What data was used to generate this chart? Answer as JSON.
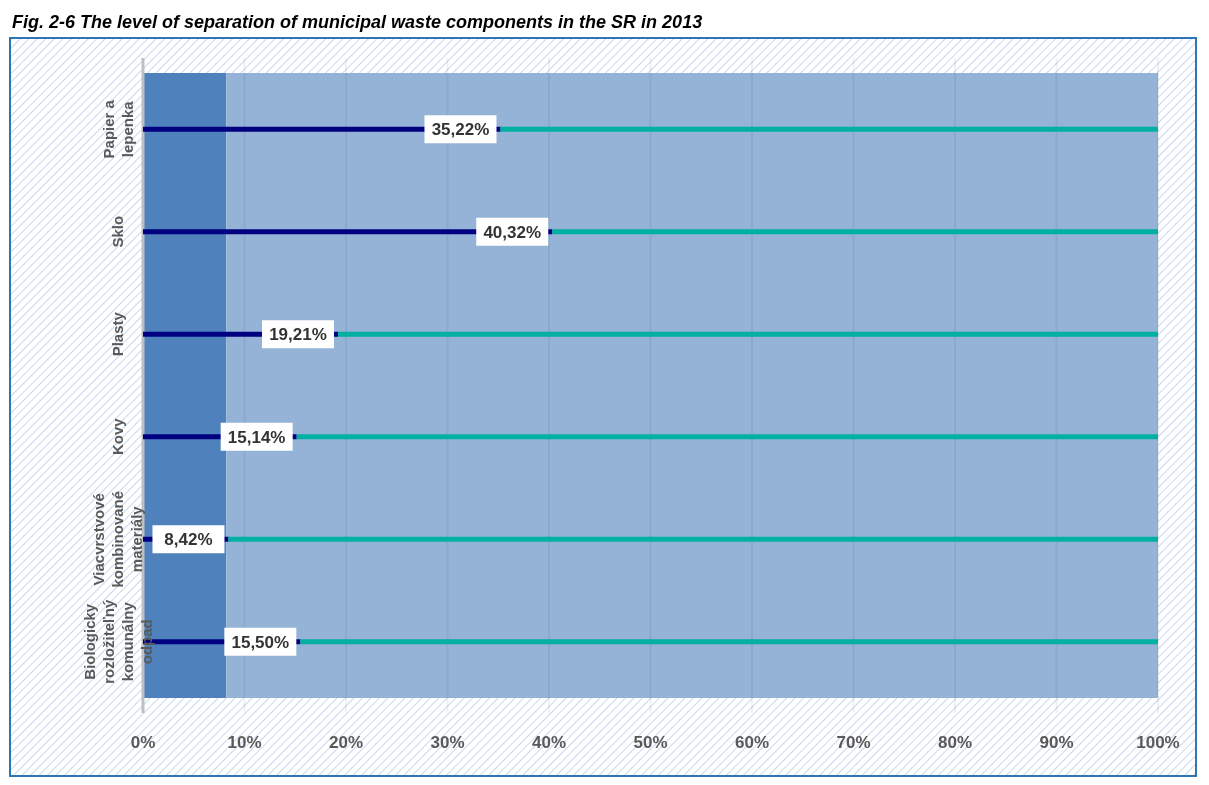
{
  "chart_data": {
    "type": "bar",
    "title": "Fig. 2-6 The level of separation of municipal waste components in the SR in 2013",
    "orientation": "horizontal",
    "stacked": true,
    "categories": [
      "Papier a lepenka",
      "Sklo",
      "Plasty",
      "Kovy",
      "Viacvrstvové kombinované materiály",
      "Biologicky rozložiteľný komunálny odpad"
    ],
    "series": [
      {
        "color": "#000080",
        "values": [
          35.22,
          40.32,
          19.21,
          15.14,
          8.42,
          15.5
        ],
        "value_labels": [
          "35,22%",
          "40,32%",
          "19,21%",
          "15,14%",
          "8,42%",
          "15,50%"
        ]
      },
      {
        "color": "#00b0a0",
        "values": [
          64.78,
          59.68,
          80.79,
          84.86,
          91.58,
          84.5
        ]
      }
    ],
    "xlim": [
      0,
      100
    ],
    "xticks": [
      {
        "value": 0,
        "label": "0%"
      },
      {
        "value": 10,
        "label": "10%"
      },
      {
        "value": 20,
        "label": "20%"
      },
      {
        "value": 30,
        "label": "30%"
      },
      {
        "value": 40,
        "label": "40%"
      },
      {
        "value": 50,
        "label": "50%"
      },
      {
        "value": 60,
        "label": "60%"
      },
      {
        "value": 70,
        "label": "70%"
      },
      {
        "value": 80,
        "label": "80%"
      },
      {
        "value": 90,
        "label": "90%"
      },
      {
        "value": 100,
        "label": "100%"
      }
    ],
    "grid": "x",
    "bands": [
      {
        "axis": "x",
        "from": 0,
        "to": 8.2,
        "color": "#4f81bd"
      },
      {
        "axis": "x",
        "from": 8.2,
        "to": 100,
        "color": "#95b3d7"
      }
    ]
  }
}
